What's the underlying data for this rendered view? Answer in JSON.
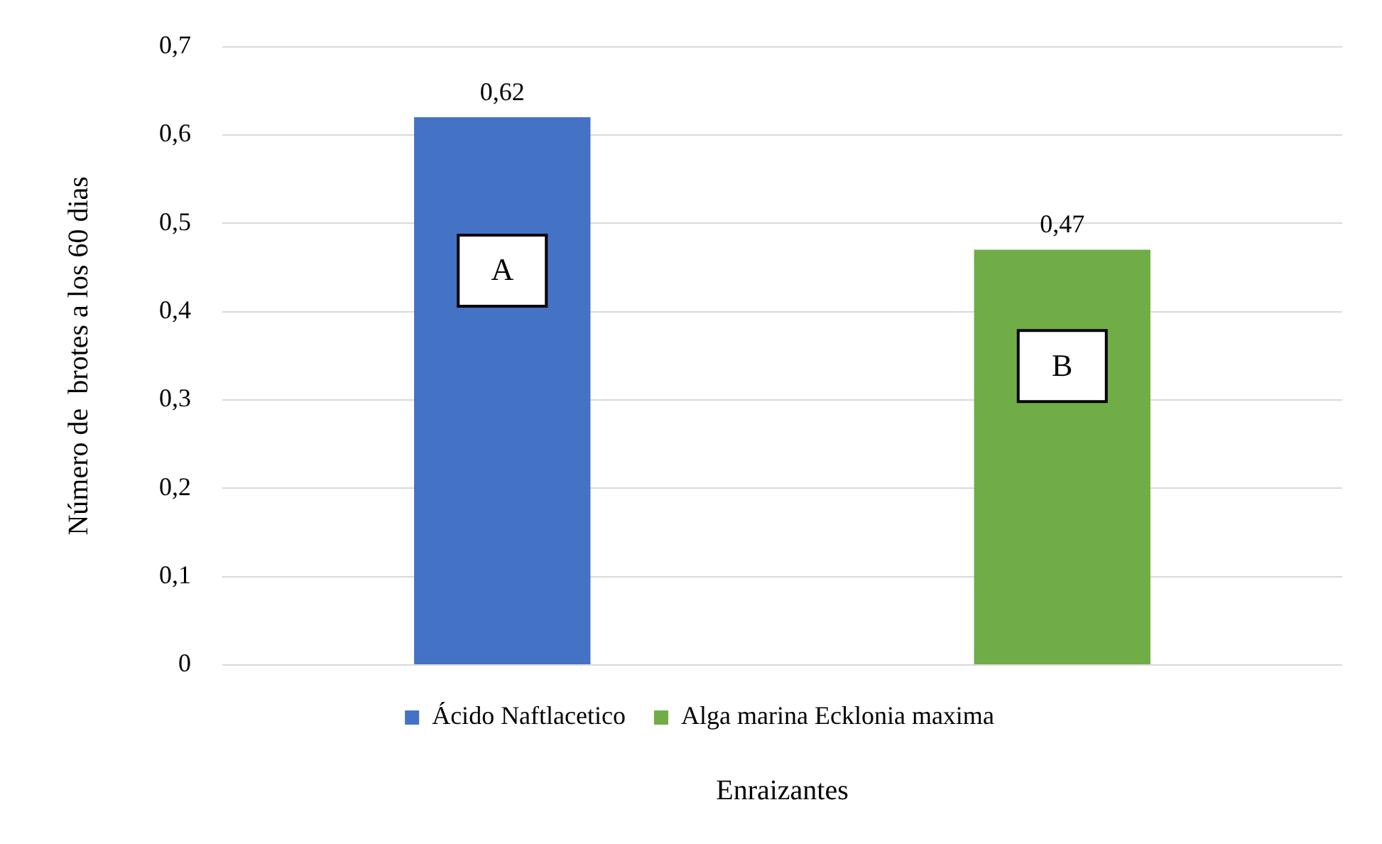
{
  "chart_data": {
    "type": "bar",
    "categories": [
      null,
      null
    ],
    "series": [
      {
        "name": "Ácido Naftlacetico",
        "color": "#4472c4",
        "values": [
          0.62,
          null
        ],
        "value_labels": [
          "0,62",
          null
        ]
      },
      {
        "name": "Alga marina Ecklonia maxima",
        "color": "#70ad47",
        "values": [
          null,
          0.47
        ],
        "value_labels": [
          null,
          "0,47"
        ]
      }
    ],
    "ylim": [
      0,
      0.7
    ],
    "yticks": [
      0,
      {
        "value": 0.1,
        "label": "0,1"
      },
      {
        "value": 0.2,
        "label": "0,2"
      },
      {
        "value": 0.3,
        "label": "0,3"
      },
      {
        "value": 0.4,
        "label": "0,4"
      },
      {
        "value": 0.5,
        "label": "0,5"
      },
      {
        "value": 0.6,
        "label": "0,6"
      },
      {
        "value": 0.7,
        "label": "0,7"
      }
    ],
    "grid": "y",
    "legend": "bottom",
    "xlabel": "Enraizantes",
    "ylabel": "Número de  brotes a los 60 dias",
    "annotations": [
      "A",
      "B"
    ]
  }
}
